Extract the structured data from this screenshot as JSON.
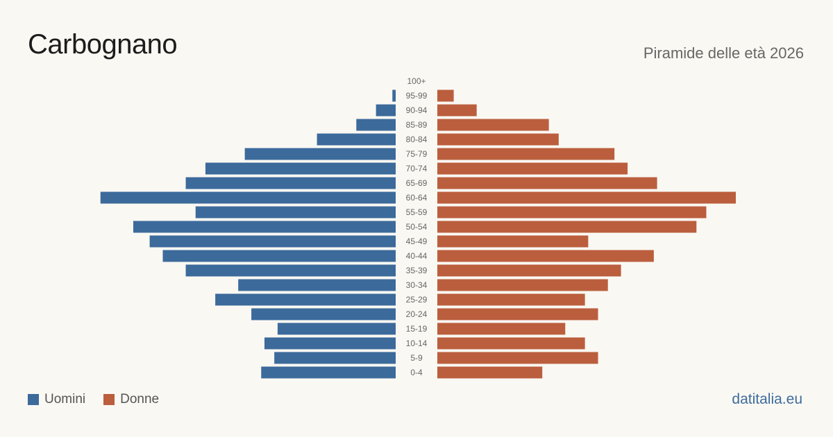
{
  "header": {
    "title": "Carbognano",
    "subtitle": "Piramide delle età 2026"
  },
  "legend": {
    "men_label": "Uomini",
    "women_label": "Donne"
  },
  "brand": "datitalia.eu",
  "colors": {
    "men": "#3c6a9b",
    "women": "#bb5e3d",
    "background": "#faf8f3"
  },
  "chart_data": {
    "type": "bar",
    "orientation": "horizontal-pyramid",
    "categories": [
      "100+",
      "95-99",
      "90-94",
      "85-89",
      "80-84",
      "75-79",
      "70-74",
      "65-69",
      "60-64",
      "55-59",
      "50-54",
      "45-49",
      "40-44",
      "35-39",
      "30-34",
      "25-29",
      "20-24",
      "15-19",
      "10-14",
      "5-9",
      "0-4"
    ],
    "series": [
      {
        "name": "Uomini",
        "values": [
          0,
          1,
          6,
          12,
          24,
          46,
          58,
          64,
          90,
          61,
          80,
          75,
          71,
          64,
          48,
          55,
          44,
          36,
          40,
          37,
          41
        ]
      },
      {
        "name": "Donne",
        "values": [
          0,
          5,
          12,
          34,
          37,
          54,
          58,
          67,
          91,
          82,
          79,
          46,
          66,
          56,
          52,
          45,
          49,
          39,
          45,
          49,
          32
        ]
      }
    ]
  }
}
